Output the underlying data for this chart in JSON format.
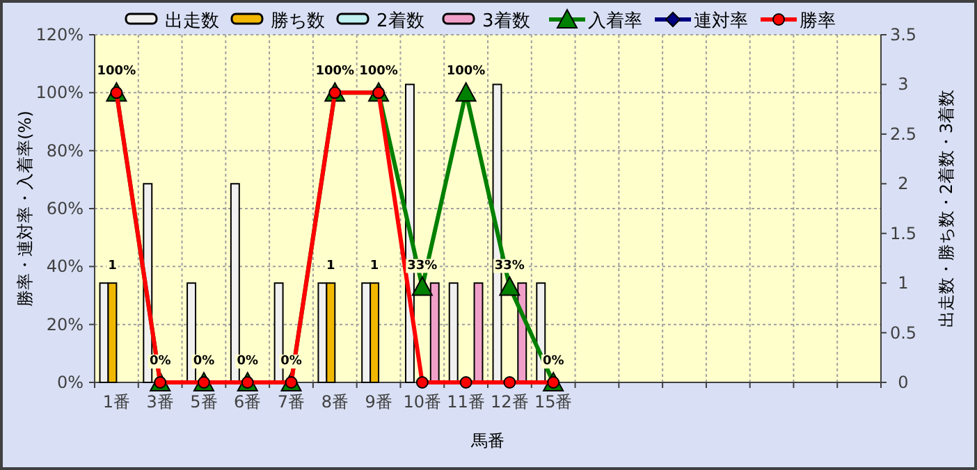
{
  "chart_data": {
    "type": "bar",
    "xlabel": "馬番",
    "ylabel": "勝率・連対率・入着率(%)",
    "y2label": "出走数・勝ち数・2着数・3着数",
    "categories": [
      "1番",
      "3番",
      "5番",
      "6番",
      "7番",
      "8番",
      "9番",
      "10番",
      "11番",
      "12番",
      "15番",
      null,
      null,
      null,
      null,
      null,
      null,
      null
    ],
    "series": [
      {
        "name": "出走数",
        "type": "bar",
        "axis": "y2",
        "color": "#f0f0f0",
        "values": [
          1,
          2,
          1,
          2,
          1,
          1,
          1,
          3,
          1,
          3,
          1,
          null,
          null,
          null,
          null,
          null,
          null,
          null
        ]
      },
      {
        "name": "勝ち数",
        "type": "bar",
        "axis": "y2",
        "color": "#f0b800",
        "values": [
          1,
          0,
          0,
          0,
          0,
          1,
          1,
          0,
          0,
          0,
          0,
          null,
          null,
          null,
          null,
          null,
          null,
          null
        ],
        "value_labels": [
          "1",
          null,
          null,
          null,
          null,
          "1",
          "1",
          null,
          null,
          null,
          null,
          null,
          null,
          null,
          null,
          null,
          null,
          null
        ]
      },
      {
        "name": "2着数",
        "type": "bar",
        "axis": "y2",
        "color": "#c0f0f0",
        "values": [
          0,
          0,
          0,
          0,
          0,
          0,
          0,
          0,
          0,
          0,
          0,
          null,
          null,
          null,
          null,
          null,
          null,
          null
        ]
      },
      {
        "name": "3着数",
        "type": "bar",
        "axis": "y2",
        "color": "#f0a0c8",
        "values": [
          0,
          0,
          0,
          0,
          0,
          0,
          0,
          1,
          1,
          1,
          0,
          null,
          null,
          null,
          null,
          null,
          null,
          null
        ]
      },
      {
        "name": "入着率",
        "type": "line",
        "marker": "triangle",
        "color": "#008000",
        "values": [
          100,
          0,
          0,
          0,
          0,
          100,
          100,
          33,
          100,
          33,
          0,
          null,
          null,
          null,
          null,
          null,
          null,
          null
        ],
        "value_labels": [
          "100%",
          "0%",
          "0%",
          "0%",
          "0%",
          "100%",
          "100%",
          "33%",
          "100%",
          "33%",
          "0%",
          null,
          null,
          null,
          null,
          null,
          null,
          null
        ]
      },
      {
        "name": "連対率",
        "type": "line",
        "marker": "diamond",
        "color": "#000080",
        "values": [
          null,
          null,
          null,
          null,
          null,
          null,
          null,
          null,
          null,
          null,
          null,
          null,
          null,
          null,
          null,
          null,
          null,
          null
        ]
      },
      {
        "name": "勝率",
        "type": "line",
        "marker": "circle",
        "color": "#ff0000",
        "values": [
          100,
          0,
          0,
          0,
          0,
          100,
          100,
          0,
          0,
          0,
          0,
          null,
          null,
          null,
          null,
          null,
          null,
          null
        ]
      }
    ],
    "ylim": [
      0,
      120
    ],
    "yticks": [
      {
        "value": 0,
        "label": "0%"
      },
      {
        "value": 20,
        "label": "20%"
      },
      {
        "value": 40,
        "label": "40%"
      },
      {
        "value": 60,
        "label": "60%"
      },
      {
        "value": 80,
        "label": "80%"
      },
      {
        "value": 100,
        "label": "100%"
      },
      {
        "value": 120,
        "label": "120%"
      }
    ],
    "y2lim": [
      0,
      3.5
    ],
    "y2ticks": [
      0,
      0.5,
      1,
      1.5,
      2,
      2.5,
      3,
      3.5
    ],
    "grid": true,
    "legend": "top"
  }
}
